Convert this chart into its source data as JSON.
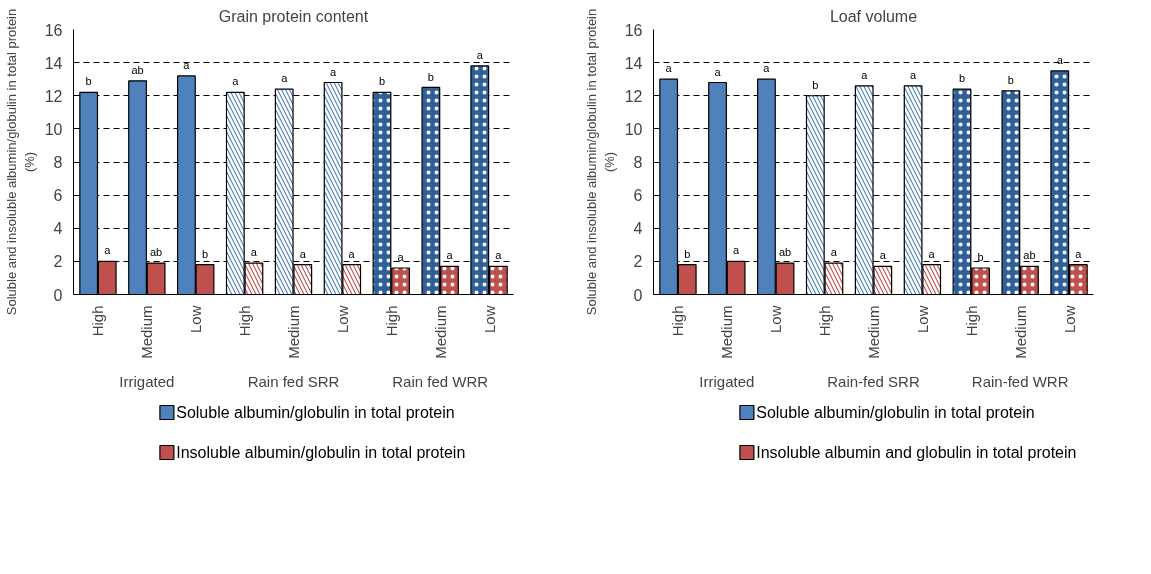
{
  "chart_data": [
    {
      "type": "bar",
      "title": "Grain protein content",
      "ylabel": "Soluble and insoluble albumin/globulin in total protein (%)",
      "categories": [
        "High",
        "Medium",
        "Low",
        "High",
        "Medium",
        "Low",
        "High",
        "Medium",
        "Low"
      ],
      "annotations": [
        "Irrigated",
        "Rain fed SRR",
        "Rain fed WRR"
      ],
      "series": [
        {
          "name": "Soluble albumin/globulin in total protein",
          "color": "#4f81bd",
          "colors": [
            "#4f81bd",
            "#4f81bd",
            "#4f81bd",
            "#4f81bd",
            "#4f81bd",
            "#4f81bd",
            "#2f5f99",
            "#2f5f99",
            "#2f5f99"
          ],
          "values": [
            12.2,
            12.9,
            13.2,
            12.2,
            12.4,
            12.8,
            12.2,
            12.5,
            13.8
          ],
          "value_labels": [
            "b",
            "ab",
            "a",
            "a",
            "a",
            "a",
            "b",
            "b",
            "a"
          ]
        },
        {
          "name": "Insoluble albumin/globulin in total protein",
          "color": "#c0504d",
          "colors": [
            "#c0504d",
            "#c0504d",
            "#c0504d",
            "#c0504d",
            "#c0504d",
            "#c0504d",
            "#c0504d",
            "#c0504d",
            "#c0504d"
          ],
          "values": [
            2.0,
            1.9,
            1.8,
            1.9,
            1.8,
            1.8,
            1.6,
            1.7,
            1.7
          ],
          "value_labels": [
            "a",
            "ab",
            "b",
            "a",
            "a",
            "a",
            "a",
            "a",
            "a"
          ]
        }
      ],
      "ylim": [
        0,
        16
      ],
      "yticks": [
        0,
        2,
        4,
        6,
        8,
        10,
        12,
        14,
        16
      ],
      "grid": "y",
      "legend": "bottom"
    },
    {
      "type": "bar",
      "title": "Loaf volume",
      "ylabel": "Soluble and insoluble albumin/globulin in total protein (%)",
      "categories": [
        "High",
        "Medium",
        "Low",
        "High",
        "Medium",
        "Low",
        "High",
        "Medium",
        "Low"
      ],
      "annotations": [
        "Irrigated",
        "Rain-fed SRR",
        "Rain-fed WRR"
      ],
      "series": [
        {
          "name": "Soluble albumin/globulin in total protein",
          "color": "#4f81bd",
          "colors": [
            "#4f81bd",
            "#4f81bd",
            "#4f81bd",
            "#4f81bd",
            "#4f81bd",
            "#4f81bd",
            "#2f5f99",
            "#2f5f99",
            "#2f5f99"
          ],
          "values": [
            13.0,
            12.8,
            13.0,
            12.0,
            12.6,
            12.6,
            12.4,
            12.3,
            13.5
          ],
          "value_labels": [
            "a",
            "a",
            "a",
            "b",
            "a",
            "a",
            "b",
            "b",
            "a"
          ]
        },
        {
          "name": "Insoluble albumin and globulin in total protein",
          "color": "#c0504d",
          "colors": [
            "#c0504d",
            "#c0504d",
            "#c0504d",
            "#c0504d",
            "#c0504d",
            "#c0504d",
            "#c0504d",
            "#c0504d",
            "#c0504d"
          ],
          "values": [
            1.8,
            2.0,
            1.9,
            1.9,
            1.7,
            1.8,
            1.6,
            1.7,
            1.8
          ],
          "value_labels": [
            "b",
            "a",
            "ab",
            "a",
            "a",
            "a",
            "b",
            "ab",
            "a"
          ]
        }
      ],
      "ylim": [
        0,
        16
      ],
      "yticks": [
        0,
        2,
        4,
        6,
        8,
        10,
        12,
        14,
        16
      ],
      "grid": "y",
      "legend": "bottom"
    }
  ]
}
